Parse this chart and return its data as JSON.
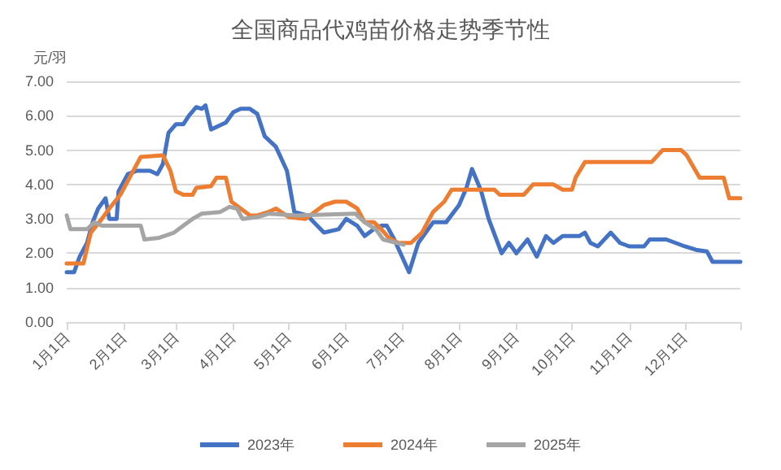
{
  "chart_data": {
    "type": "line",
    "title": "全国商品代鸡苗价格走势季节性",
    "ylabel": "元/羽",
    "xlim": [
      "--01-01",
      "--12-31"
    ],
    "xticks": [
      {
        "value": "--01-01",
        "label": "1月1日"
      },
      {
        "value": "--02-01",
        "label": "2月1日"
      },
      {
        "value": "--03-01",
        "label": "3月1日"
      },
      {
        "value": "--04-01",
        "label": "4月1日"
      },
      {
        "value": "--05-01",
        "label": "5月1日"
      },
      {
        "value": "--06-01",
        "label": "6月1日"
      },
      {
        "value": "--07-01",
        "label": "7月1日"
      },
      {
        "value": "--08-01",
        "label": "8月1日"
      },
      {
        "value": "--09-01",
        "label": "9月1日"
      },
      {
        "value": "--10-01",
        "label": "10月1日"
      },
      {
        "value": "--11-01",
        "label": "11月1日"
      },
      {
        "value": "--12-01",
        "label": "12月1日"
      },
      {
        "value": "--12-31",
        "label": null
      }
    ],
    "ylim": [
      0,
      7
    ],
    "yticks": [
      {
        "value": 0,
        "label": "0.00"
      },
      {
        "value": 1,
        "label": "1.00"
      },
      {
        "value": 2,
        "label": "2.00"
      },
      {
        "value": 3,
        "label": "3.00"
      },
      {
        "value": 4,
        "label": "4.00"
      },
      {
        "value": 5,
        "label": "5.00"
      },
      {
        "value": 6,
        "label": "6.00"
      },
      {
        "value": 7,
        "label": "7.00"
      }
    ],
    "grid": "y",
    "legend": "bottom",
    "marker": "none",
    "line_style": "solid",
    "series": [
      {
        "name": "2023年",
        "color": "#4472c4",
        "x": [
          "--01-01",
          "--01-05",
          "--01-08",
          "--01-12",
          "--01-15",
          "--01-18",
          "--01-22",
          "--01-24",
          "--01-28",
          "--01-29",
          "--02-03",
          "--02-08",
          "--02-15",
          "--02-19",
          "--02-22",
          "--02-25",
          "--03-01",
          "--03-05",
          "--03-08",
          "--03-12",
          "--03-15",
          "--03-17",
          "--03-20",
          "--03-24",
          "--03-28",
          "--04-01",
          "--04-05",
          "--04-10",
          "--04-14",
          "--04-18",
          "--04-24",
          "--04-30",
          "--05-04",
          "--05-11",
          "--05-20",
          "--05-28",
          "--06-01",
          "--06-07",
          "--06-11",
          "--06-16",
          "--06-20",
          "--06-23",
          "--06-27",
          "--07-05",
          "--07-10",
          "--07-18",
          "--07-25",
          "--08-01",
          "--08-05",
          "--08-08",
          "--08-13",
          "--08-17",
          "--08-24",
          "--08-28",
          "--09-01",
          "--09-07",
          "--09-12",
          "--09-17",
          "--09-21",
          "--09-26",
          "--10-05",
          "--10-08",
          "--10-11",
          "--10-15",
          "--10-22",
          "--10-27",
          "--11-01",
          "--11-09",
          "--11-12",
          "--11-21",
          "--11-26",
          "--12-01",
          "--12-07",
          "--12-13",
          "--12-16",
          "--12-31"
        ],
        "values": [
          1.45,
          1.45,
          1.9,
          2.3,
          2.9,
          3.3,
          3.6,
          3.0,
          3.0,
          3.8,
          4.3,
          4.4,
          4.4,
          4.3,
          4.6,
          5.5,
          5.75,
          5.75,
          6.0,
          6.25,
          6.2,
          6.3,
          5.6,
          5.7,
          5.8,
          6.1,
          6.2,
          6.2,
          6.05,
          5.4,
          5.1,
          4.4,
          3.2,
          3.1,
          2.6,
          2.7,
          3.0,
          2.8,
          2.5,
          2.7,
          2.8,
          2.8,
          2.4,
          1.45,
          2.3,
          2.9,
          2.9,
          3.4,
          3.9,
          4.45,
          3.8,
          3.0,
          2.0,
          2.3,
          2.0,
          2.4,
          1.9,
          2.5,
          2.3,
          2.5,
          2.5,
          2.6,
          2.3,
          2.2,
          2.6,
          2.3,
          2.2,
          2.2,
          2.4,
          2.4,
          2.3,
          2.2,
          2.1,
          2.05,
          1.75,
          1.75
        ]
      },
      {
        "name": "2024年",
        "color": "#ed7d31",
        "x": [
          "--01-01",
          "--01-10",
          "--01-14",
          "--01-20",
          "--01-24",
          "--01-30",
          "--02-05",
          "--02-10",
          "--02-22",
          "--02-26",
          "--03-01",
          "--03-05",
          "--03-10",
          "--03-12",
          "--03-20",
          "--03-23",
          "--03-28",
          "--03-31",
          "--04-05",
          "--04-10",
          "--04-14",
          "--04-20",
          "--04-24",
          "--05-01",
          "--05-10",
          "--05-20",
          "--05-26",
          "--06-01",
          "--06-07",
          "--06-11",
          "--06-16",
          "--06-20",
          "--06-24",
          "--06-29",
          "--07-06",
          "--07-12",
          "--07-18",
          "--07-24",
          "--07-28",
          "--08-20",
          "--08-23",
          "--09-05",
          "--09-10",
          "--09-21",
          "--09-26",
          "--10-01",
          "--10-03",
          "--10-08",
          "--11-13",
          "--11-19",
          "--11-29",
          "--12-02",
          "--12-09",
          "--12-22",
          "--12-25",
          "--12-31"
        ],
        "values": [
          1.7,
          1.7,
          2.6,
          3.0,
          3.3,
          3.7,
          4.3,
          4.8,
          4.85,
          4.4,
          3.8,
          3.7,
          3.7,
          3.9,
          3.95,
          4.2,
          4.2,
          3.5,
          3.3,
          3.1,
          3.1,
          3.2,
          3.3,
          3.05,
          3.0,
          3.4,
          3.5,
          3.5,
          3.3,
          2.9,
          2.9,
          2.7,
          2.45,
          2.3,
          2.3,
          2.6,
          3.2,
          3.5,
          3.85,
          3.85,
          3.7,
          3.7,
          4.0,
          4.0,
          3.85,
          3.85,
          4.2,
          4.65,
          4.65,
          5.0,
          5.0,
          4.85,
          4.2,
          4.2,
          3.6,
          3.6
        ]
      },
      {
        "name": "2025年",
        "color": "#a5a5a5",
        "x": [
          "--01-01",
          "--01-03",
          "--01-12",
          "--01-16",
          "--01-20",
          "--02-10",
          "--02-12",
          "--02-20",
          "--02-28",
          "--03-05",
          "--03-10",
          "--03-15",
          "--03-25",
          "--03-30",
          "--04-03",
          "--04-06",
          "--04-14",
          "--04-20",
          "--05-05",
          "--06-06",
          "--06-11",
          "--06-17",
          "--06-21",
          "--07-02"
        ],
        "values": [
          3.1,
          2.7,
          2.7,
          2.9,
          2.8,
          2.8,
          2.4,
          2.45,
          2.6,
          2.8,
          3.0,
          3.15,
          3.2,
          3.35,
          3.3,
          3.0,
          3.05,
          3.15,
          3.1,
          3.15,
          2.9,
          2.7,
          2.4,
          2.25
        ]
      }
    ]
  }
}
